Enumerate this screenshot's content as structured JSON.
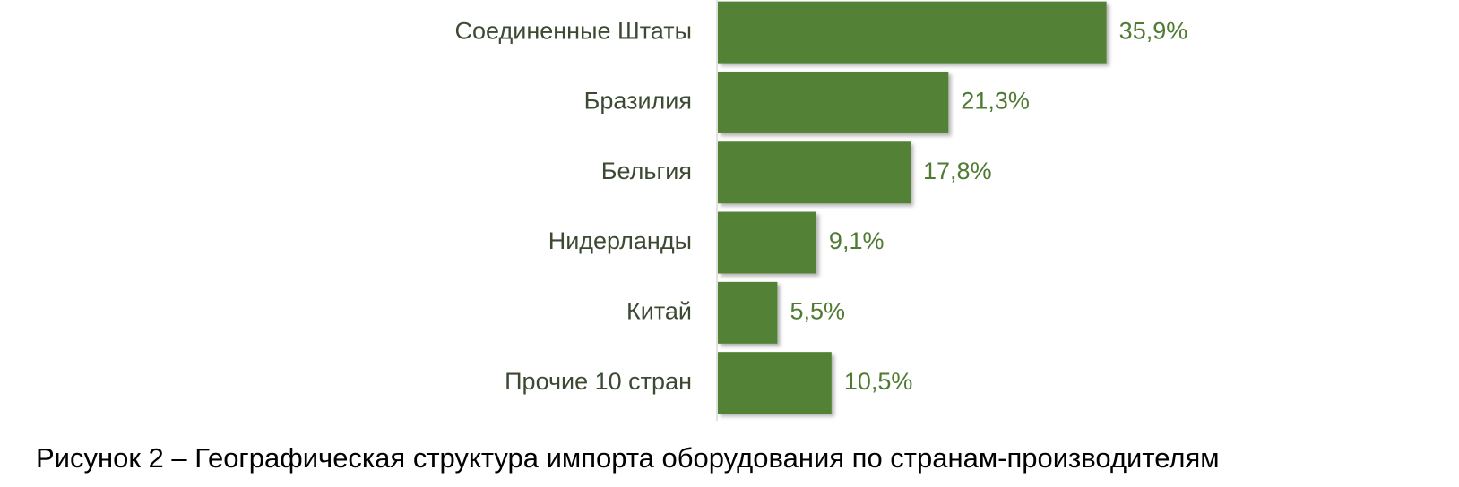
{
  "chart_data": {
    "type": "hbar",
    "caption": "Рисунок 2 – Географическая структура импорта оборудования по странам-производителям",
    "categories": [
      "Соединенные Штаты",
      "Бразилия",
      "Бельгия",
      "Нидерланды",
      "Китай",
      "Прочие 10 стран"
    ],
    "values": [
      35.9,
      21.3,
      17.8,
      9.1,
      5.5,
      10.5
    ],
    "value_labels": [
      "35,9%",
      "21,3%",
      "17,8%",
      "9,1%",
      "5,5%",
      "10,5%"
    ],
    "color": "#538135"
  }
}
